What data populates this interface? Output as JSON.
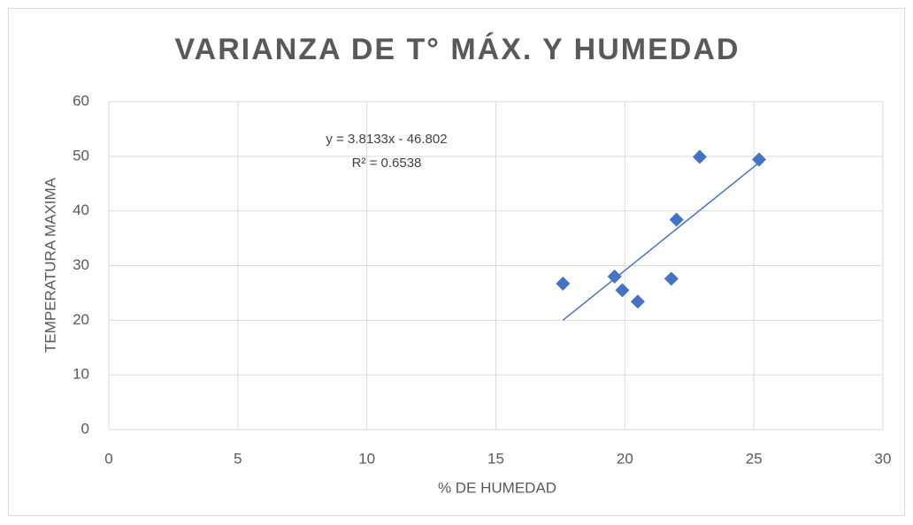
{
  "chart_data": {
    "type": "scatter",
    "title": "VARIANZA DE T° MÁX. Y HUMEDAD",
    "x_label": "% DE HUMEDAD",
    "y_label": "TEMPERATURA MAXIMA",
    "annotations": [
      "y = 3.8133x - 46.802",
      "R² = 0.6538"
    ],
    "series": [
      {
        "name": "TEMPERATURA MAXIMA",
        "color": "#4472c4",
        "x": [
          17.6,
          19.6,
          19.9,
          20.5,
          21.8,
          22.0,
          22.9,
          25.2
        ],
        "values": [
          26.7,
          28.0,
          25.5,
          23.4,
          27.6,
          38.4,
          49.9,
          49.4
        ]
      }
    ],
    "trendline": "linear",
    "xlim": [
      0,
      30
    ],
    "xticks": [
      0,
      5,
      10,
      15,
      20,
      25,
      30
    ],
    "ylim": [
      0,
      60
    ],
    "yticks": [
      0,
      10,
      20,
      30,
      40,
      50,
      60
    ],
    "grid": true
  }
}
